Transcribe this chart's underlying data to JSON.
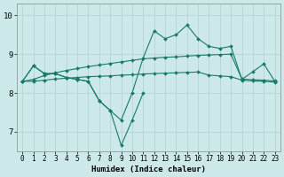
{
  "xlabel": "Humidex (Indice chaleur)",
  "bg_color": "#cce8e8",
  "grid_color": "#b0d0d0",
  "line_color": "#1a7a6a",
  "ylim": [
    6.5,
    10.3
  ],
  "xlim": [
    -0.5,
    23.5
  ],
  "yticks": [
    7,
    8,
    9,
    10
  ],
  "xticks": [
    0,
    1,
    2,
    3,
    4,
    5,
    6,
    7,
    8,
    9,
    10,
    11,
    12,
    13,
    14,
    15,
    16,
    17,
    18,
    19,
    20,
    21,
    22,
    23
  ],
  "line_main": [
    8.3,
    8.7,
    8.5,
    8.5,
    8.4,
    8.35,
    8.3,
    7.8,
    7.55,
    7.3,
    8.0,
    8.9,
    9.6,
    9.4,
    9.5,
    9.75,
    9.4,
    9.2,
    9.15,
    9.2,
    8.35,
    8.55,
    8.75,
    8.3
  ],
  "line_deep": [
    8.3,
    8.7,
    8.5,
    8.5,
    8.4,
    8.35,
    8.3,
    7.8,
    7.55,
    6.65,
    7.3,
    8.0,
    null,
    null,
    null,
    null,
    null,
    null,
    null,
    null,
    null,
    null,
    null,
    null
  ],
  "line_upper": [
    8.3,
    8.35,
    8.45,
    8.52,
    8.58,
    8.63,
    8.68,
    8.72,
    8.76,
    8.8,
    8.84,
    8.88,
    8.9,
    8.92,
    8.93,
    8.95,
    8.97,
    8.98,
    8.99,
    9.0,
    8.36,
    8.34,
    8.33,
    8.31
  ],
  "line_lower": [
    8.3,
    8.3,
    8.33,
    8.36,
    8.38,
    8.4,
    8.42,
    8.43,
    8.44,
    8.46,
    8.47,
    8.49,
    8.5,
    8.51,
    8.52,
    8.53,
    8.54,
    8.46,
    8.44,
    8.42,
    8.33,
    8.31,
    8.3,
    8.28
  ]
}
